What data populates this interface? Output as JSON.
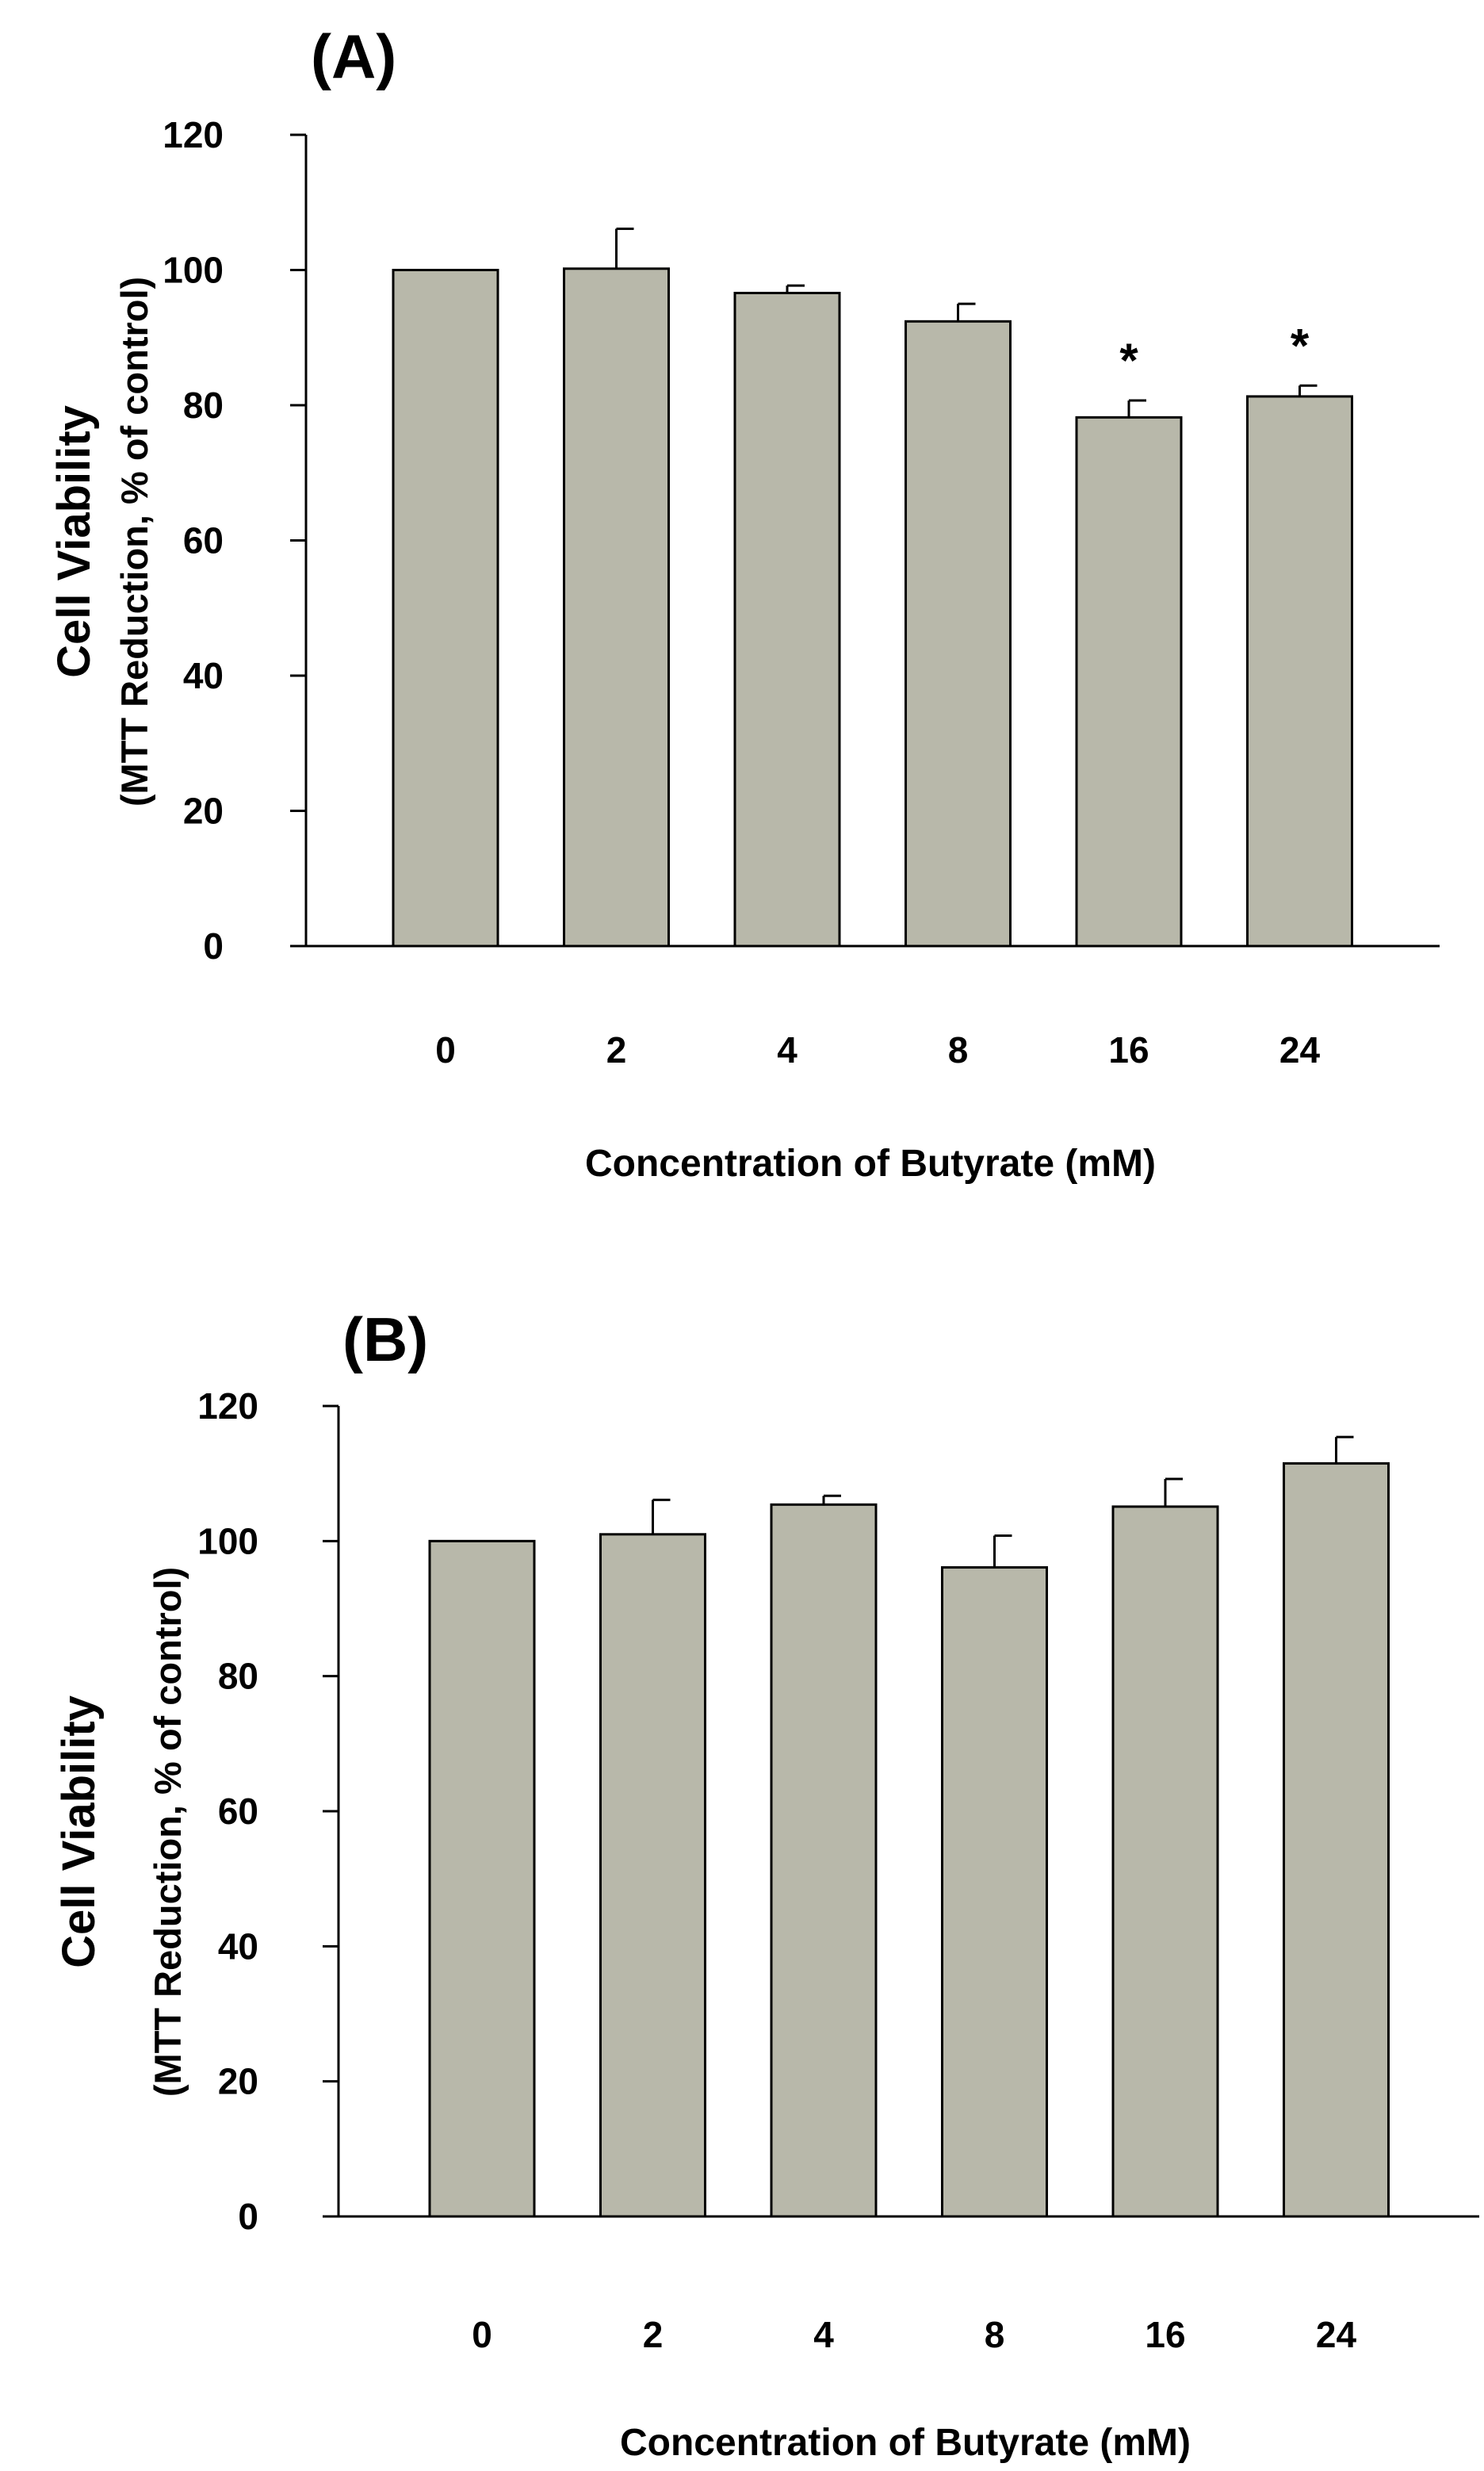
{
  "chart_data": [
    {
      "type": "bar",
      "panel_label": "(A)",
      "categories": [
        "0",
        "2",
        "4",
        "8",
        "16",
        "24"
      ],
      "values": [
        100,
        100.2,
        96.6,
        92.4,
        78.2,
        81.3
      ],
      "errors": [
        0,
        5.9,
        1.1,
        2.6,
        2.5,
        1.6
      ],
      "annotations": [
        "",
        "",
        "",
        "",
        "*",
        "*"
      ],
      "ylabel_main": "Cell Viability",
      "ylabel_sub": "(MTT Reduction, % of control)",
      "xlabel": "Concentration of Butyrate (mM)",
      "yticks": [
        "0",
        "20",
        "40",
        "60",
        "80",
        "100",
        "120"
      ],
      "ylim": [
        0,
        120
      ],
      "bar_color": "#b8b8aa"
    },
    {
      "type": "bar",
      "panel_label": "(B)",
      "categories": [
        "0",
        "2",
        "4",
        "8",
        "16",
        "24"
      ],
      "values": [
        100,
        101,
        105.4,
        96.1,
        105.1,
        111.5
      ],
      "errors": [
        0,
        5.1,
        1.3,
        4.7,
        4.1,
        3.9
      ],
      "annotations": [
        "",
        "",
        "",
        "",
        "",
        ""
      ],
      "ylabel_main": "Cell Viability",
      "ylabel_sub": "(MTT Reduction, % of control)",
      "xlabel": "Concentration of Butyrate (mM)",
      "yticks": [
        "0",
        "20",
        "40",
        "60",
        "80",
        "100",
        "120"
      ],
      "ylim": [
        0,
        120
      ],
      "bar_color": "#b8b8aa"
    }
  ]
}
